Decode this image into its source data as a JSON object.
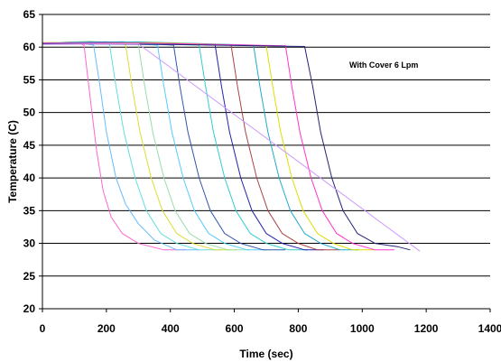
{
  "chart_data": {
    "type": "line",
    "title": "",
    "annotation": "With Cover 6 Lpm",
    "xlabel": "Time (sec)",
    "ylabel": "Temperature (C)",
    "xlim": [
      0,
      1400
    ],
    "ylim": [
      20,
      65
    ],
    "xticks": [
      0,
      200,
      400,
      600,
      800,
      1000,
      1200,
      1400
    ],
    "yticks": [
      20,
      25,
      30,
      35,
      40,
      45,
      50,
      55,
      60,
      65
    ],
    "grid": "horizontal",
    "legend": "none",
    "series": [
      {
        "color": "#ff66cc",
        "points": [
          [
            0,
            60.6
          ],
          [
            100,
            60.8
          ],
          [
            130,
            60.3
          ],
          [
            150,
            52
          ],
          [
            170,
            44
          ],
          [
            190,
            38
          ],
          [
            215,
            34
          ],
          [
            250,
            31.5
          ],
          [
            300,
            30
          ],
          [
            380,
            29
          ],
          [
            450,
            29
          ]
        ]
      },
      {
        "color": "#66bbff",
        "points": [
          [
            0,
            60.4
          ],
          [
            100,
            60.7
          ],
          [
            160,
            60.3
          ],
          [
            180,
            54
          ],
          [
            200,
            47
          ],
          [
            230,
            40
          ],
          [
            260,
            36
          ],
          [
            300,
            33
          ],
          [
            350,
            30.5
          ],
          [
            420,
            29
          ],
          [
            490,
            29
          ]
        ]
      },
      {
        "color": "#66dddd",
        "points": [
          [
            0,
            60.5
          ],
          [
            150,
            60.9
          ],
          [
            210,
            60.4
          ],
          [
            230,
            54
          ],
          [
            255,
            47
          ],
          [
            290,
            40
          ],
          [
            325,
            35
          ],
          [
            370,
            31.5
          ],
          [
            420,
            30
          ],
          [
            490,
            29
          ],
          [
            560,
            29
          ]
        ]
      },
      {
        "color": "#dddd33",
        "points": [
          [
            0,
            60.7
          ],
          [
            150,
            60.8
          ],
          [
            260,
            60.4
          ],
          [
            280,
            54
          ],
          [
            305,
            47
          ],
          [
            340,
            40
          ],
          [
            375,
            35
          ],
          [
            420,
            31.5
          ],
          [
            470,
            30
          ],
          [
            540,
            29
          ],
          [
            610,
            29
          ]
        ]
      },
      {
        "color": "#99ddaa",
        "points": [
          [
            0,
            60.6
          ],
          [
            150,
            60.9
          ],
          [
            300,
            60.4
          ],
          [
            320,
            54
          ],
          [
            345,
            47
          ],
          [
            380,
            40
          ],
          [
            415,
            35
          ],
          [
            460,
            31.5
          ],
          [
            510,
            30
          ],
          [
            580,
            29
          ],
          [
            650,
            29
          ]
        ]
      },
      {
        "color": "#55ccff",
        "points": [
          [
            0,
            60.5
          ],
          [
            200,
            60.7
          ],
          [
            360,
            60.3
          ],
          [
            380,
            54
          ],
          [
            405,
            47
          ],
          [
            440,
            40
          ],
          [
            475,
            35
          ],
          [
            520,
            31.5
          ],
          [
            570,
            30
          ],
          [
            640,
            29
          ],
          [
            700,
            29
          ]
        ]
      },
      {
        "color": "#3355aa",
        "points": [
          [
            0,
            60.6
          ],
          [
            200,
            60.8
          ],
          [
            410,
            60.3
          ],
          [
            430,
            54
          ],
          [
            455,
            47
          ],
          [
            490,
            40
          ],
          [
            525,
            35
          ],
          [
            570,
            31.5
          ],
          [
            620,
            30
          ],
          [
            690,
            29
          ],
          [
            760,
            29
          ]
        ]
      },
      {
        "color": "#33cccc",
        "points": [
          [
            0,
            60.5
          ],
          [
            200,
            60.7
          ],
          [
            490,
            60.3
          ],
          [
            510,
            54
          ],
          [
            535,
            47
          ],
          [
            570,
            40
          ],
          [
            605,
            35
          ],
          [
            650,
            31.5
          ],
          [
            700,
            30
          ],
          [
            770,
            29
          ],
          [
            830,
            29
          ]
        ]
      },
      {
        "color": "#2222aa",
        "points": [
          [
            0,
            60.6
          ],
          [
            250,
            60.8
          ],
          [
            540,
            60.3
          ],
          [
            560,
            54
          ],
          [
            585,
            47
          ],
          [
            620,
            40
          ],
          [
            655,
            35
          ],
          [
            700,
            31.5
          ],
          [
            750,
            30
          ],
          [
            820,
            29
          ],
          [
            880,
            29
          ]
        ]
      },
      {
        "color": "#aa4444",
        "points": [
          [
            0,
            60.5
          ],
          [
            300,
            60.7
          ],
          [
            590,
            60.3
          ],
          [
            610,
            54
          ],
          [
            635,
            47
          ],
          [
            670,
            40
          ],
          [
            705,
            35
          ],
          [
            750,
            31.5
          ],
          [
            800,
            30
          ],
          [
            860,
            29
          ],
          [
            930,
            29
          ]
        ]
      },
      {
        "color": "#22aacc",
        "points": [
          [
            0,
            60.6
          ],
          [
            300,
            60.8
          ],
          [
            660,
            60.3
          ],
          [
            680,
            54
          ],
          [
            705,
            47
          ],
          [
            740,
            40
          ],
          [
            775,
            35
          ],
          [
            820,
            31.5
          ],
          [
            870,
            30
          ],
          [
            930,
            29
          ],
          [
            990,
            29
          ]
        ]
      },
      {
        "color": "#dddd00",
        "points": [
          [
            0,
            60.5
          ],
          [
            350,
            60.7
          ],
          [
            700,
            60.2
          ],
          [
            720,
            54
          ],
          [
            745,
            47
          ],
          [
            780,
            40
          ],
          [
            815,
            35
          ],
          [
            860,
            31.5
          ],
          [
            910,
            30
          ],
          [
            970,
            29
          ],
          [
            1040,
            29
          ]
        ]
      },
      {
        "color": "#ff33cc",
        "points": [
          [
            0,
            60.6
          ],
          [
            350,
            60.6
          ],
          [
            760,
            60.2
          ],
          [
            780,
            54
          ],
          [
            805,
            47
          ],
          [
            840,
            40
          ],
          [
            875,
            35
          ],
          [
            920,
            31.5
          ],
          [
            970,
            30
          ],
          [
            1040,
            29
          ],
          [
            1100,
            29
          ]
        ]
      },
      {
        "color": "#222277",
        "points": [
          [
            0,
            60.5
          ],
          [
            400,
            60.4
          ],
          [
            820,
            60.1
          ],
          [
            845,
            54
          ],
          [
            870,
            47
          ],
          [
            905,
            40
          ],
          [
            940,
            35
          ],
          [
            985,
            31.5
          ],
          [
            1040,
            30
          ],
          [
            1110,
            29.5
          ],
          [
            1150,
            29
          ]
        ]
      },
      {
        "color": "#cc99ff",
        "points": [
          [
            0,
            60.4
          ],
          [
            300,
            60.5
          ],
          [
            1180,
            28.8
          ]
        ]
      }
    ]
  }
}
